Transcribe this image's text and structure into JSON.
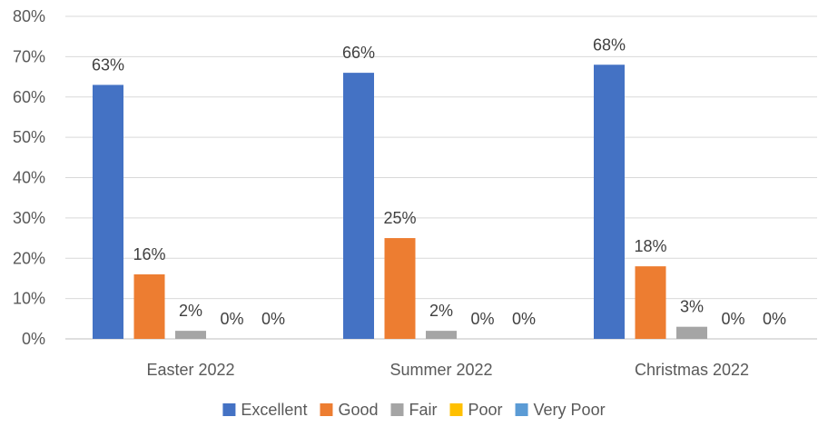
{
  "chart_data": {
    "type": "bar",
    "title": "",
    "xlabel": "",
    "ylabel": "",
    "categories": [
      "Easter 2022",
      "Summer 2022",
      "Christmas 2022"
    ],
    "ylim": [
      0,
      80
    ],
    "yticks": [
      "0%",
      "10%",
      "20%",
      "30%",
      "40%",
      "50%",
      "60%",
      "70%",
      "80%"
    ],
    "grid": true,
    "legend_position": "bottom",
    "series": [
      {
        "name": "Excellent",
        "color": "#4472C4",
        "values": [
          63,
          66,
          68
        ],
        "labels": [
          "63%",
          "66%",
          "68%"
        ]
      },
      {
        "name": "Good",
        "color": "#ED7D31",
        "values": [
          16,
          25,
          18
        ],
        "labels": [
          "16%",
          "25%",
          "18%"
        ]
      },
      {
        "name": "Fair",
        "color": "#A5A5A5",
        "values": [
          2,
          2,
          3
        ],
        "labels": [
          "2%",
          "2%",
          "3%"
        ]
      },
      {
        "name": "Poor",
        "color": "#FFC000",
        "values": [
          0,
          0,
          0
        ],
        "labels": [
          "0%",
          "0%",
          "0%"
        ]
      },
      {
        "name": "Very Poor",
        "color": "#5B9BD5",
        "values": [
          0,
          0,
          0
        ],
        "labels": [
          "0%",
          "0%",
          "0%"
        ]
      }
    ]
  }
}
